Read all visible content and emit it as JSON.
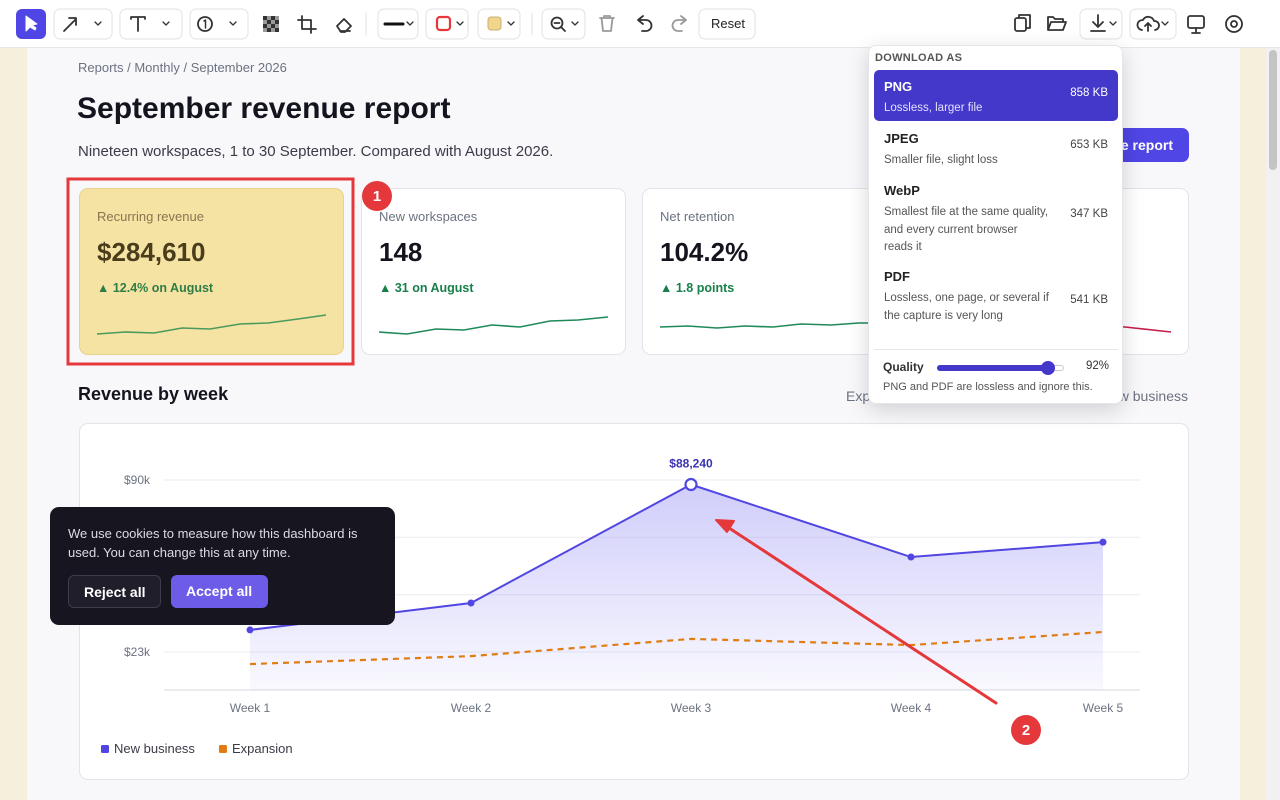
{
  "toolbar": {
    "reset": "Reset"
  },
  "breadcrumb": "Reports / Monthly / September 2026",
  "title": "September revenue report",
  "subtitle": "Nineteen workspaces, 1 to 30 September. Compared with August 2026.",
  "header_button": "e report",
  "kpis": [
    {
      "label": "Recurring revenue",
      "value": "$284,610",
      "delta": "▲ 12.4% on August"
    },
    {
      "label": "New workspaces",
      "value": "148",
      "delta": "▲ 31 on August"
    },
    {
      "label": "Net retention",
      "value": "104.2%",
      "delta": "▲ 1.8 points"
    }
  ],
  "annotations": [
    "1",
    "2"
  ],
  "section_title": "Revenue by week",
  "chart_data": {
    "type": "line",
    "categories": [
      "Week 1",
      "Week 2",
      "Week 3",
      "Week 4",
      "Week 5"
    ],
    "series": [
      {
        "name": "New business",
        "color": "#5146e1",
        "values": [
          31600,
          42100,
          88240,
          60000,
          65800
        ],
        "value_labels": [
          null,
          null,
          "$88,240",
          null,
          null
        ],
        "area": true,
        "markers": true
      },
      {
        "name": "Expansion",
        "color": "#e07c12",
        "values": [
          18300,
          21400,
          28100,
          25700,
          30800
        ],
        "dashed": true
      }
    ],
    "ylim": [
      8200,
      90000
    ],
    "yticks": [
      {
        "value": 90000,
        "label": "$90k"
      },
      67700,
      45300,
      {
        "value": 23000,
        "label": "$23k"
      }
    ],
    "grid": true
  },
  "cookie_banner": {
    "text": "We use cookies to measure how this dashboard is used. You can change this at any time.",
    "reject": "Reject all",
    "accept": "Accept all"
  },
  "download_menu": {
    "heading": "DOWNLOAD AS",
    "options": [
      {
        "name": "PNG",
        "description": "Lossless, larger file",
        "size": "858 KB"
      },
      {
        "name": "JPEG",
        "description": "Smaller file, slight loss",
        "size": "653 KB"
      },
      {
        "name": "WebP",
        "description": "Smallest file at the same quality, and every current browser reads it",
        "size": "347 KB"
      },
      {
        "name": "PDF",
        "description": "Lossless, one page, or several if the capture is very long",
        "size": "541 KB"
      }
    ],
    "quality": {
      "label": "Quality",
      "value": 92,
      "value_label": "92%"
    },
    "note": "PNG and PDF are lossless and ignore this."
  }
}
